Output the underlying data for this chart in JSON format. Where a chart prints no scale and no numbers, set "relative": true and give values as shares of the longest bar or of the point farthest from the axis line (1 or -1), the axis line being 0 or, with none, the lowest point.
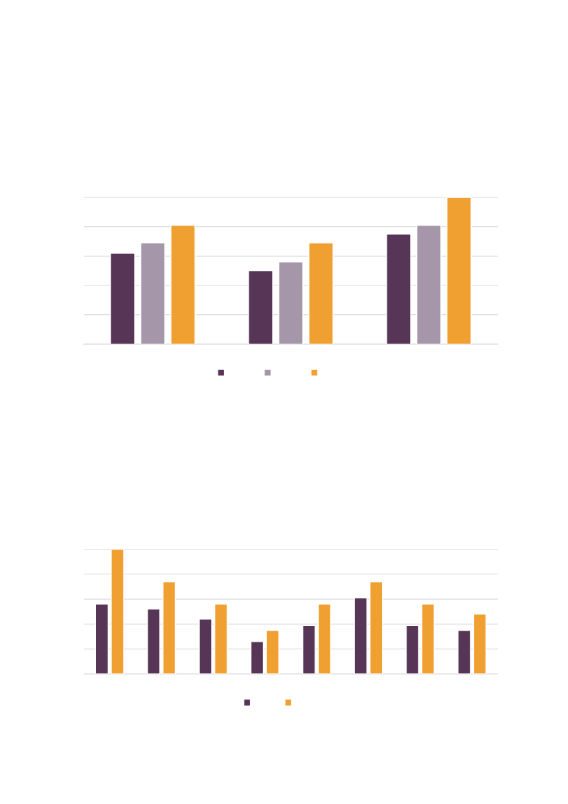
{
  "chart_data": [
    {
      "type": "bar",
      "relative": true,
      "grid": "y",
      "categories": [
        null,
        null,
        null
      ],
      "series": [
        {
          "color": "#573557",
          "values": [
            0.62,
            0.5,
            0.75
          ]
        },
        {
          "color": "#a696aa",
          "values": [
            0.69,
            0.56,
            0.81
          ]
        },
        {
          "color": "#f0a030",
          "values": [
            0.81,
            0.69,
            1.0
          ]
        }
      ]
    },
    {
      "type": "bar",
      "relative": true,
      "grid": "y",
      "categories": [
        null,
        null,
        null,
        null,
        null,
        null,
        null,
        null
      ],
      "series": [
        {
          "color": "#573557",
          "values": [
            0.56,
            0.52,
            0.44,
            0.26,
            0.39,
            0.61,
            0.39,
            0.35
          ]
        },
        {
          "color": "#f0a030",
          "values": [
            1.0,
            0.74,
            0.56,
            0.35,
            0.56,
            0.74,
            0.56,
            0.48
          ]
        }
      ]
    }
  ]
}
